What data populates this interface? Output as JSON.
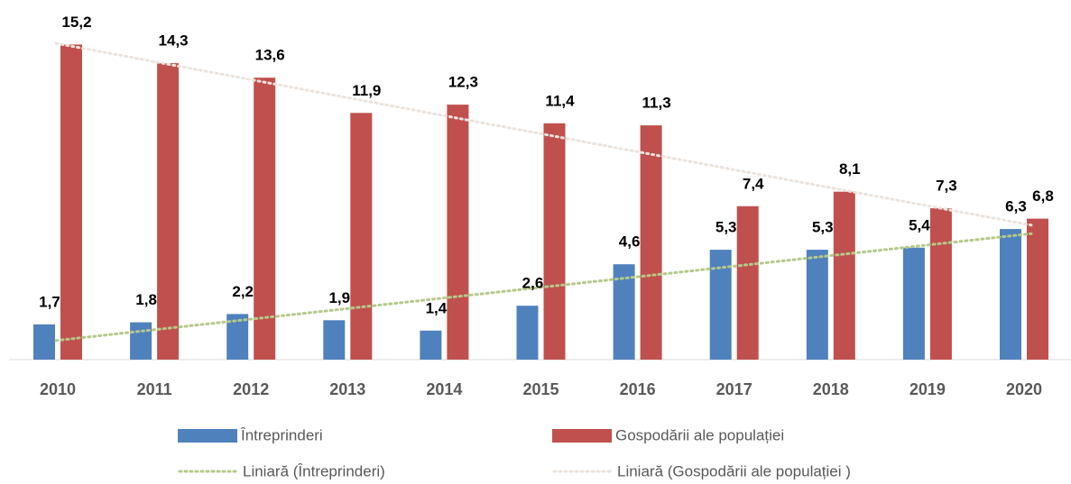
{
  "chart_data": {
    "type": "bar",
    "categories": [
      "2010",
      "2011",
      "2012",
      "2013",
      "2014",
      "2015",
      "2016",
      "2017",
      "2018",
      "2019",
      "2020"
    ],
    "series": [
      {
        "name": "Întreprinderi",
        "color": "#4f81bd",
        "values": [
          1.7,
          1.8,
          2.2,
          1.9,
          1.4,
          2.6,
          4.6,
          5.3,
          5.3,
          5.4,
          6.3
        ],
        "value_labels": [
          "1,7",
          "1,8",
          "2,2",
          "1,9",
          "1,4",
          "2,6",
          "4,6",
          "5,3",
          "5,3",
          "5,4",
          "6,3"
        ],
        "trendline": {
          "name": "Liniară (Întreprinderi)",
          "color": "#b5c98a"
        }
      },
      {
        "name": "Gospodării ale populației",
        "color": "#c0504d",
        "values": [
          15.2,
          14.3,
          13.6,
          11.9,
          12.3,
          11.4,
          11.3,
          7.4,
          8.1,
          7.3,
          6.8
        ],
        "value_labels": [
          "15,2",
          "14,3",
          "13,6",
          "11,9",
          "12,3",
          "11,4",
          "11,3",
          "7,4",
          "8,1",
          "7,3",
          "6,8"
        ],
        "trendline": {
          "name": "Liniară (Gospodării ale populației )",
          "color": "#ebe3dc"
        }
      }
    ],
    "ylim": [
      0,
      17
    ],
    "legend": "bottom"
  }
}
